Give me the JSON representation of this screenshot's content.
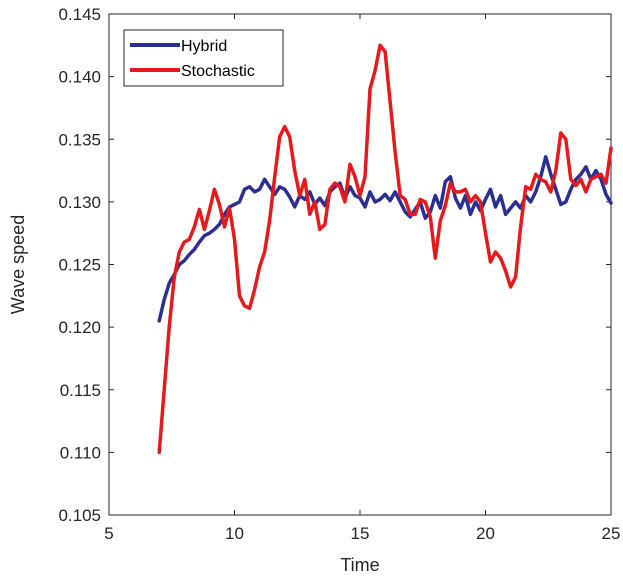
{
  "chart_data": {
    "type": "line",
    "xlabel": "Time",
    "ylabel": "Wave speed",
    "xlim": [
      5,
      25
    ],
    "ylim": [
      0.105,
      0.145
    ],
    "xticks": [
      5,
      10,
      15,
      20,
      25
    ],
    "xtick_labels": [
      "5",
      "10",
      "15",
      "20",
      "25"
    ],
    "yticks": [
      0.105,
      0.11,
      0.115,
      0.12,
      0.125,
      0.13,
      0.135,
      0.14,
      0.145
    ],
    "ytick_labels": [
      "0.105",
      "0.110",
      "0.115",
      "0.120",
      "0.125",
      "0.130",
      "0.135",
      "0.140",
      "0.145"
    ],
    "grid": false,
    "legend_position": "top-left",
    "series": [
      {
        "name": "Hybrid",
        "color": "#2b2f8f",
        "x": [
          7.0,
          7.2,
          7.4,
          7.6,
          7.8,
          8.0,
          8.2,
          8.4,
          8.6,
          8.8,
          9.0,
          9.2,
          9.4,
          9.6,
          9.8,
          10.0,
          10.2,
          10.4,
          10.6,
          10.8,
          11.0,
          11.2,
          11.4,
          11.6,
          11.8,
          12.0,
          12.2,
          12.4,
          12.6,
          12.8,
          13.0,
          13.2,
          13.4,
          13.6,
          13.8,
          14.0,
          14.2,
          14.4,
          14.6,
          14.8,
          15.0,
          15.2,
          15.4,
          15.6,
          15.8,
          16.0,
          16.2,
          16.4,
          16.6,
          16.8,
          17.0,
          17.2,
          17.4,
          17.6,
          17.8,
          18.0,
          18.2,
          18.4,
          18.6,
          18.8,
          19.0,
          19.2,
          19.4,
          19.6,
          19.8,
          20.0,
          20.2,
          20.4,
          20.6,
          20.8,
          21.0,
          21.2,
          21.4,
          21.6,
          21.8,
          22.0,
          22.2,
          22.4,
          22.6,
          22.8,
          23.0,
          23.2,
          23.4,
          23.6,
          23.8,
          24.0,
          24.2,
          24.4,
          24.6,
          24.8,
          25.0
        ],
        "values": [
          0.1205,
          0.1222,
          0.1235,
          0.1242,
          0.125,
          0.1253,
          0.1258,
          0.1262,
          0.1268,
          0.1273,
          0.1275,
          0.1278,
          0.1282,
          0.129,
          0.1296,
          0.1298,
          0.13,
          0.131,
          0.1312,
          0.1308,
          0.131,
          0.1318,
          0.1312,
          0.1306,
          0.1312,
          0.131,
          0.1304,
          0.1296,
          0.1305,
          0.1302,
          0.1308,
          0.1298,
          0.1303,
          0.1297,
          0.1308,
          0.1312,
          0.1315,
          0.1303,
          0.1312,
          0.1305,
          0.1303,
          0.1296,
          0.1308,
          0.13,
          0.1302,
          0.1306,
          0.1301,
          0.1308,
          0.13,
          0.1292,
          0.1288,
          0.1294,
          0.13,
          0.1287,
          0.1292,
          0.1305,
          0.1295,
          0.1316,
          0.132,
          0.1303,
          0.1295,
          0.1305,
          0.129,
          0.13,
          0.1293,
          0.1302,
          0.131,
          0.1296,
          0.1305,
          0.129,
          0.1295,
          0.13,
          0.1295,
          0.1305,
          0.13,
          0.1308,
          0.132,
          0.1336,
          0.1322,
          0.131,
          0.1298,
          0.13,
          0.131,
          0.1318,
          0.1322,
          0.1328,
          0.1318,
          0.1325,
          0.1318,
          0.1306,
          0.1299
        ]
      },
      {
        "name": "Stochastic",
        "color": "#e41a1c",
        "x": [
          7.0,
          7.2,
          7.4,
          7.6,
          7.8,
          8.0,
          8.2,
          8.4,
          8.6,
          8.8,
          9.0,
          9.2,
          9.4,
          9.6,
          9.8,
          10.0,
          10.2,
          10.4,
          10.6,
          10.8,
          11.0,
          11.2,
          11.4,
          11.6,
          11.8,
          12.0,
          12.2,
          12.4,
          12.6,
          12.8,
          13.0,
          13.2,
          13.4,
          13.6,
          13.8,
          14.0,
          14.2,
          14.4,
          14.6,
          14.8,
          15.0,
          15.2,
          15.4,
          15.6,
          15.8,
          16.0,
          16.2,
          16.4,
          16.6,
          16.8,
          17.0,
          17.2,
          17.4,
          17.6,
          17.8,
          18.0,
          18.2,
          18.4,
          18.6,
          18.8,
          19.0,
          19.2,
          19.4,
          19.6,
          19.8,
          20.0,
          20.2,
          20.4,
          20.6,
          20.8,
          21.0,
          21.2,
          21.4,
          21.6,
          21.8,
          22.0,
          22.2,
          22.4,
          22.6,
          22.8,
          23.0,
          23.2,
          23.4,
          23.6,
          23.8,
          24.0,
          24.2,
          24.4,
          24.6,
          24.8,
          25.0
        ],
        "values": [
          0.11,
          0.115,
          0.12,
          0.124,
          0.126,
          0.1268,
          0.127,
          0.128,
          0.1294,
          0.1278,
          0.1293,
          0.131,
          0.1298,
          0.128,
          0.1295,
          0.127,
          0.1225,
          0.1217,
          0.1215,
          0.123,
          0.1248,
          0.126,
          0.1285,
          0.132,
          0.1352,
          0.136,
          0.1352,
          0.1325,
          0.1305,
          0.1318,
          0.129,
          0.13,
          0.1278,
          0.1282,
          0.131,
          0.1315,
          0.1312,
          0.13,
          0.133,
          0.132,
          0.1305,
          0.132,
          0.139,
          0.1405,
          0.1425,
          0.142,
          0.138,
          0.134,
          0.1305,
          0.1302,
          0.129,
          0.129,
          0.1302,
          0.13,
          0.1288,
          0.1255,
          0.1285,
          0.1297,
          0.1315,
          0.1308,
          0.1308,
          0.131,
          0.13,
          0.1305,
          0.13,
          0.1275,
          0.1252,
          0.126,
          0.1255,
          0.1245,
          0.1232,
          0.124,
          0.128,
          0.1312,
          0.131,
          0.1322,
          0.1318,
          0.1316,
          0.1308,
          0.1325,
          0.1355,
          0.135,
          0.1318,
          0.1313,
          0.1318,
          0.1308,
          0.1318,
          0.132,
          0.1322,
          0.1315,
          0.1343
        ]
      }
    ]
  }
}
